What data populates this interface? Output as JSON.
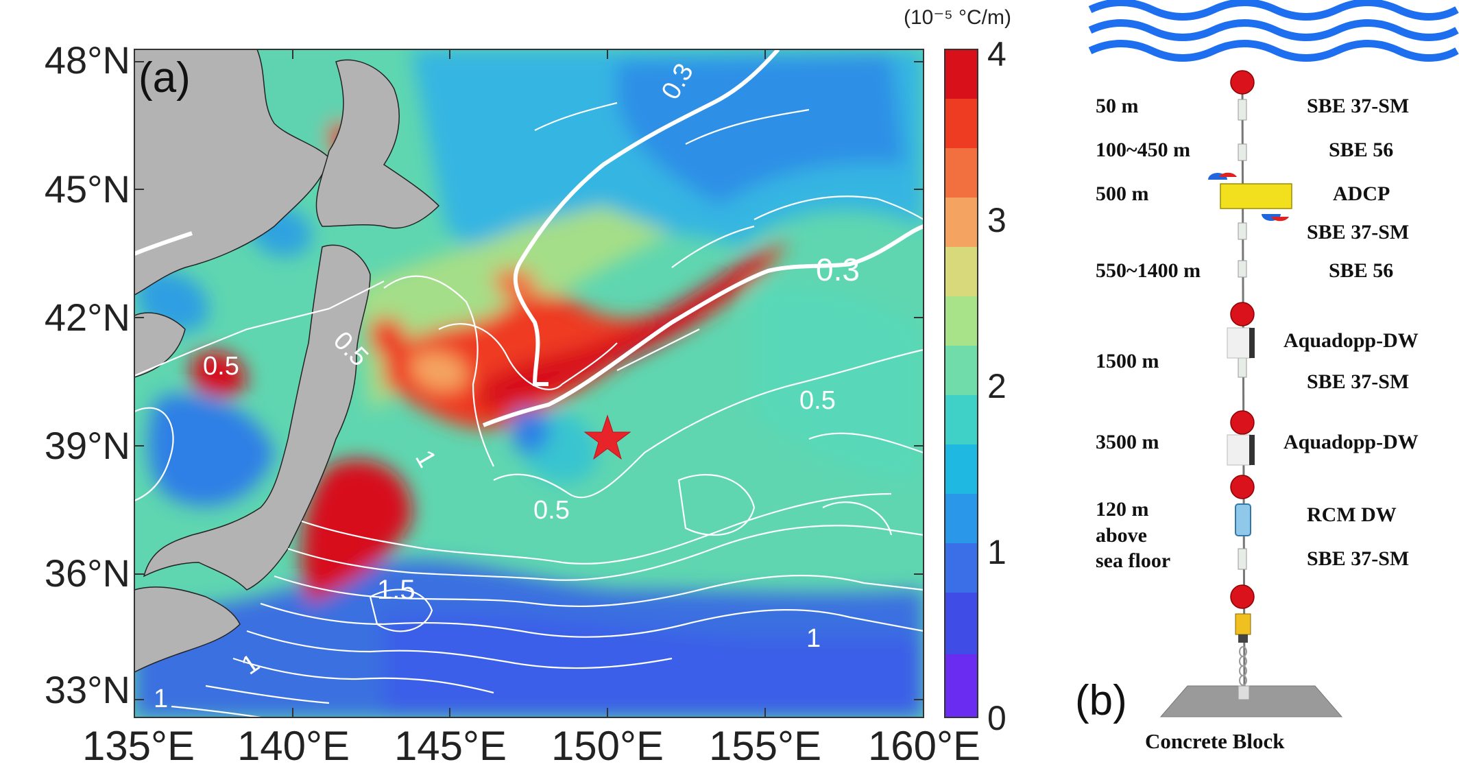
{
  "panel_a": {
    "letter": "(a)",
    "latitude_labels": [
      "48°N",
      "45°N",
      "42°N",
      "39°N",
      "36°N",
      "33°N"
    ],
    "longitude_labels": [
      "135°E",
      "140°E",
      "145°E",
      "150°E",
      "155°E",
      "160°E"
    ],
    "colorbar": {
      "unit": "(10⁻⁵ °C/m)",
      "tick_labels": [
        "4",
        "3",
        "2",
        "1",
        "0"
      ],
      "colors": [
        "#d7101a",
        "#ee3c22",
        "#f27040",
        "#f4a460",
        "#d8d97a",
        "#a8e38a",
        "#6fdcaa",
        "#3fd1c8",
        "#1fb8e0",
        "#2a97e8",
        "#3a6fe8",
        "#3f4de6",
        "#6a2cf0"
      ]
    },
    "contour_labels": [
      "0.3",
      "0.3",
      "0.5",
      "0.5",
      "0.5",
      "0.5",
      "1",
      "1.5",
      "1",
      "1",
      "1"
    ],
    "colors": {
      "land": "#b3b3b3",
      "star": "#e8242b",
      "contour": "#ffffff"
    }
  },
  "panel_b": {
    "letter": "(b)",
    "depth_labels": [
      "50 m",
      "100~450 m",
      "500 m",
      "550~1400 m",
      "1500 m",
      "3500 m",
      "120 m\nabove\nsea floor"
    ],
    "instrument_labels": [
      "SBE 37-SM",
      "SBE 56",
      "ADCP",
      "SBE 37-SM",
      "SBE 56",
      "Aquadopp-DW",
      "SBE 37-SM",
      "Aquadopp-DW",
      "RCM DW",
      "SBE 37-SM"
    ],
    "anchor_label": "Concrete Block",
    "colors": {
      "waves": "#1e6ff0",
      "float": "#d9121c",
      "adcp": "#f2e01e",
      "anchor": "#9a9a9a"
    }
  }
}
